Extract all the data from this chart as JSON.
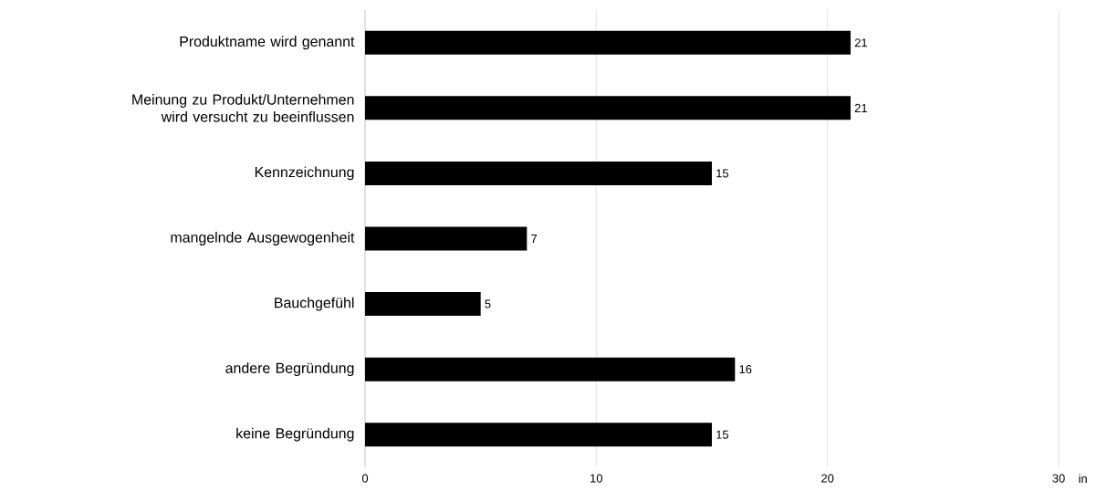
{
  "chart_data": {
    "type": "bar",
    "orientation": "horizontal",
    "categories": [
      "Produktname wird genannt",
      "Meinung zu Produkt/Unternehmen wird versucht zu beeinflussen",
      "Kennzeichnung",
      "mangelnde Ausgewogenheit",
      "Bauchgefühl",
      "andere Begründung",
      "keine Begründung"
    ],
    "values": [
      21,
      21,
      15,
      7,
      5,
      16,
      15
    ],
    "color": "#000000",
    "xlabel": "in",
    "xlim": [
      0,
      30
    ],
    "xticks": [
      0,
      10,
      20,
      30
    ],
    "grid": "x",
    "data_labels": true
  }
}
